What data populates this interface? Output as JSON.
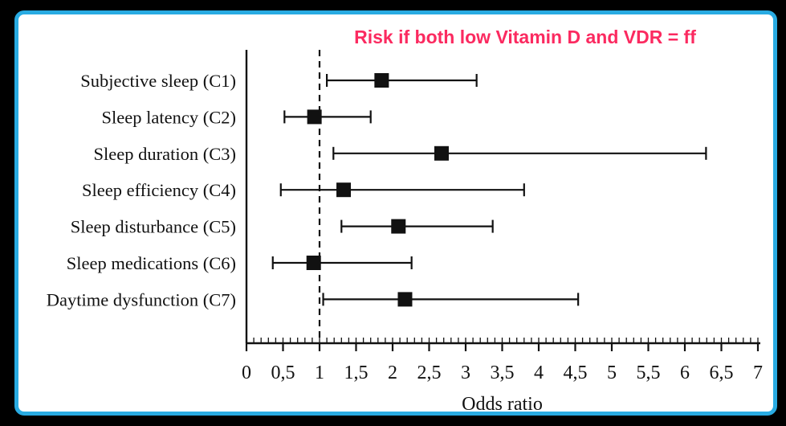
{
  "window": {
    "background_color": "#000000",
    "frame_border_color": "#29ABE2",
    "frame_fill_color": "#FFFFFF"
  },
  "title": {
    "text": "Risk if both low Vitamin D and VDR = ff",
    "color": "#FB2A60"
  },
  "chart_data": {
    "type": "scatter",
    "subtype": "forest-plot",
    "title": "Risk if both low Vitamin D and VDR = ff",
    "xlabel": "Odds ratio",
    "ylabel": "",
    "xlim": [
      0,
      7
    ],
    "x_major_tick_step": 0.5,
    "x_minor_tick_step": 0.1,
    "x_tick_labels": [
      "0",
      "0,5",
      "1",
      "1,5",
      "2",
      "2,5",
      "3",
      "3,5",
      "4",
      "4,5",
      "5",
      "5,5",
      "6",
      "6,5",
      "7"
    ],
    "reference_line_x": 1,
    "reference_line_style": "dashed",
    "marker_style": "filled-square",
    "marker_color": "#111111",
    "grid": false,
    "legend": "none",
    "categories": [
      "Subjective sleep (C1)",
      "Sleep latency (C2)",
      "Sleep duration (C3)",
      "Sleep efficiency (C4)",
      "Sleep disturbance (C5)",
      "Sleep medications (C6)",
      "Daytime dysfunction (C7)"
    ],
    "points": [
      {
        "label": "Subjective sleep (C1)",
        "or": 1.85,
        "ci_low": 1.1,
        "ci_high": 3.15
      },
      {
        "label": "Sleep latency (C2)",
        "or": 0.93,
        "ci_low": 0.52,
        "ci_high": 1.7
      },
      {
        "label": "Sleep duration (C3)",
        "or": 2.67,
        "ci_low": 1.19,
        "ci_high": 6.29
      },
      {
        "label": "Sleep efficiency (C4)",
        "or": 1.33,
        "ci_low": 0.47,
        "ci_high": 3.8
      },
      {
        "label": "Sleep disturbance (C5)",
        "or": 2.08,
        "ci_low": 1.3,
        "ci_high": 3.37
      },
      {
        "label": "Sleep medications (C6)",
        "or": 0.92,
        "ci_low": 0.36,
        "ci_high": 2.26
      },
      {
        "label": "Daytime dysfunction (C7)",
        "or": 2.17,
        "ci_low": 1.05,
        "ci_high": 4.54
      }
    ]
  }
}
